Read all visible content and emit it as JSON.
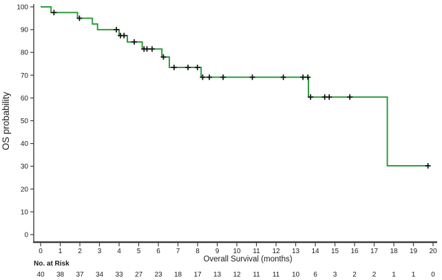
{
  "chart_data": {
    "type": "line",
    "subtype": "kaplan-meier-step",
    "title": "",
    "xlabel": "Overall Survival (months)",
    "ylabel": "OS probability",
    "xlim": [
      0,
      20
    ],
    "ylim": [
      0,
      100
    ],
    "x_ticks": [
      0,
      1,
      2,
      3,
      4,
      5,
      6,
      7,
      8,
      9,
      10,
      11,
      12,
      13,
      14,
      15,
      16,
      17,
      18,
      19,
      20
    ],
    "y_ticks": [
      0,
      10,
      20,
      30,
      40,
      50,
      60,
      70,
      80,
      90,
      100
    ],
    "grid": false,
    "legend": "none",
    "colors": {
      "line": "#2e9b3a",
      "censor": "#111111",
      "axis": "#3d3d3d",
      "text": "#1a1a1a",
      "background": "#ffffff"
    },
    "series": [
      {
        "name": "OS",
        "start": [
          0,
          100
        ],
        "steps": [
          [
            0.53,
            97.5
          ],
          [
            1.88,
            95.0
          ],
          [
            2.64,
            92.5
          ],
          [
            2.9,
            90.0
          ],
          [
            4.0,
            87.4
          ],
          [
            4.42,
            84.6
          ],
          [
            5.18,
            81.5
          ],
          [
            6.18,
            78.0
          ],
          [
            6.56,
            73.4
          ],
          [
            8.18,
            69.1
          ],
          [
            13.65,
            60.4
          ],
          [
            17.67,
            30.2
          ]
        ],
        "end_time": 19.85,
        "censors": [
          [
            0.68,
            97.5
          ],
          [
            1.98,
            95.0
          ],
          [
            3.86,
            90.0
          ],
          [
            4.07,
            87.4
          ],
          [
            4.25,
            87.4
          ],
          [
            4.77,
            84.6
          ],
          [
            5.27,
            81.5
          ],
          [
            5.42,
            81.5
          ],
          [
            5.68,
            81.5
          ],
          [
            6.26,
            78.0
          ],
          [
            6.8,
            73.4
          ],
          [
            7.51,
            73.4
          ],
          [
            7.99,
            73.4
          ],
          [
            8.26,
            69.1
          ],
          [
            8.6,
            69.1
          ],
          [
            9.3,
            69.1
          ],
          [
            10.79,
            69.1
          ],
          [
            12.37,
            69.1
          ],
          [
            13.37,
            69.1
          ],
          [
            13.62,
            69.1
          ],
          [
            13.76,
            60.4
          ],
          [
            14.48,
            60.4
          ],
          [
            14.71,
            60.4
          ],
          [
            15.76,
            60.4
          ],
          [
            19.74,
            30.2
          ]
        ]
      }
    ],
    "risk_table": {
      "label": "No. at Risk",
      "times": [
        0,
        1,
        2,
        3,
        4,
        5,
        6,
        7,
        8,
        9,
        10,
        11,
        12,
        13,
        14,
        15,
        16,
        17,
        18,
        19,
        20
      ],
      "counts": [
        40,
        38,
        37,
        34,
        33,
        27,
        23,
        18,
        17,
        13,
        12,
        11,
        11,
        10,
        6,
        3,
        2,
        2,
        1,
        1,
        0
      ]
    }
  }
}
